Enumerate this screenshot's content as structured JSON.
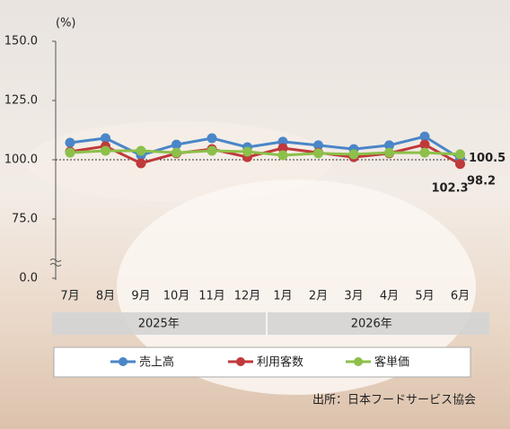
{
  "chart_data": {
    "type": "line",
    "unit_label": "(%)",
    "categories": [
      "7月",
      "8月",
      "9月",
      "10月",
      "11月",
      "12月",
      "1月",
      "2月",
      "3月",
      "4月",
      "5月",
      "6月"
    ],
    "year_groups": [
      {
        "label": "2025年",
        "span": [
          0,
          5
        ]
      },
      {
        "label": "2026年",
        "span": [
          6,
          11
        ]
      }
    ],
    "series": [
      {
        "name": "売上高",
        "color": "#4a86c8",
        "values": [
          107.2,
          109.1,
          101.9,
          106.4,
          109.1,
          105.3,
          107.6,
          106.1,
          104.5,
          106.1,
          109.8,
          100.5
        ]
      },
      {
        "name": "利用客数",
        "color": "#c0393b",
        "values": [
          103.4,
          105.7,
          98.5,
          102.7,
          104.5,
          101.1,
          104.9,
          103.0,
          101.1,
          102.7,
          106.4,
          98.2
        ]
      },
      {
        "name": "客単価",
        "color": "#8cc04a",
        "values": [
          103.0,
          103.8,
          103.8,
          103.0,
          103.8,
          103.4,
          101.9,
          102.7,
          102.3,
          103.0,
          103.0,
          102.3
        ]
      }
    ],
    "label_colors": [
      "#6f9fd0",
      "#c0393b",
      "#3d9a3d"
    ],
    "ylim": [
      0,
      150
    ],
    "y_break": [
      0,
      50
    ],
    "yticks": [
      {
        "value": 0,
        "label": "0.0"
      },
      {
        "value": 75,
        "label": "75.0"
      },
      {
        "value": 100,
        "label": "100.0"
      },
      {
        "value": 125,
        "label": "125.0"
      },
      {
        "value": 150,
        "label": "150.0"
      }
    ],
    "reference_line": 100,
    "source": "出所：日本フードサービス協会"
  }
}
